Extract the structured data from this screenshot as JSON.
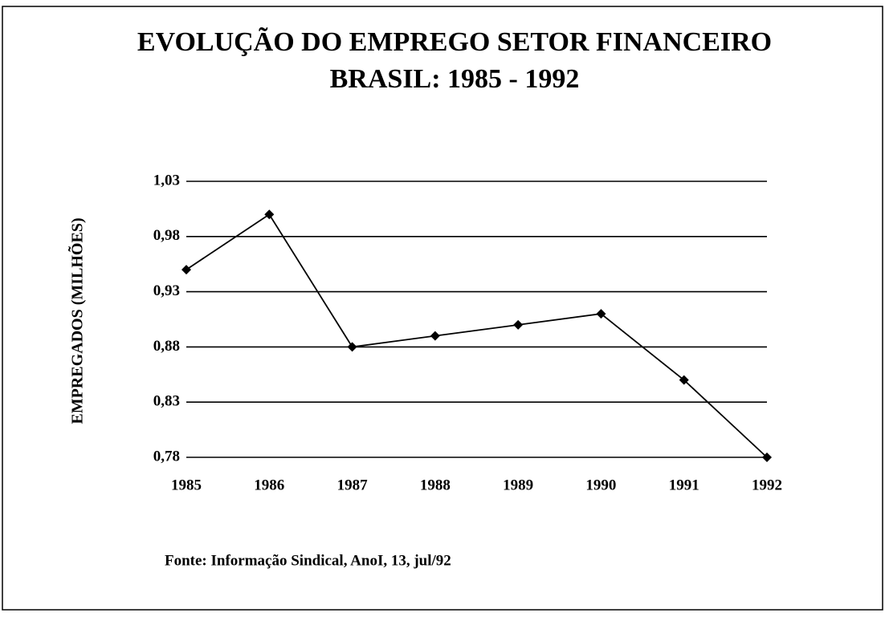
{
  "chart_data": {
    "type": "line",
    "title": "EVOLUÇÃO DO EMPREGO SETOR FINANCEIRO",
    "subtitle": "BRASIL: 1985 - 1992",
    "y_label": "EMPREGADOS (MILHÕES)",
    "source": "Fonte: Informação Sindical, AnoI, 13, jul/92",
    "categories": [
      "1985",
      "1986",
      "1987",
      "1988",
      "1989",
      "1990",
      "1991",
      "1992"
    ],
    "series": [
      {
        "name": "Empregados",
        "color": "#000000",
        "values": [
          0.95,
          1.0,
          0.88,
          0.89,
          0.9,
          0.91,
          0.85,
          0.78
        ]
      }
    ],
    "ylim": [
      0.78,
      1.03
    ],
    "yticks": [
      {
        "value": 0.78,
        "label": "0,78"
      },
      {
        "value": 0.83,
        "label": "0,83"
      },
      {
        "value": 0.88,
        "label": "0,88"
      },
      {
        "value": 0.93,
        "label": "0,93"
      },
      {
        "value": 0.98,
        "label": "0,98"
      },
      {
        "value": 1.03,
        "label": "1,03"
      }
    ],
    "grid": true
  }
}
